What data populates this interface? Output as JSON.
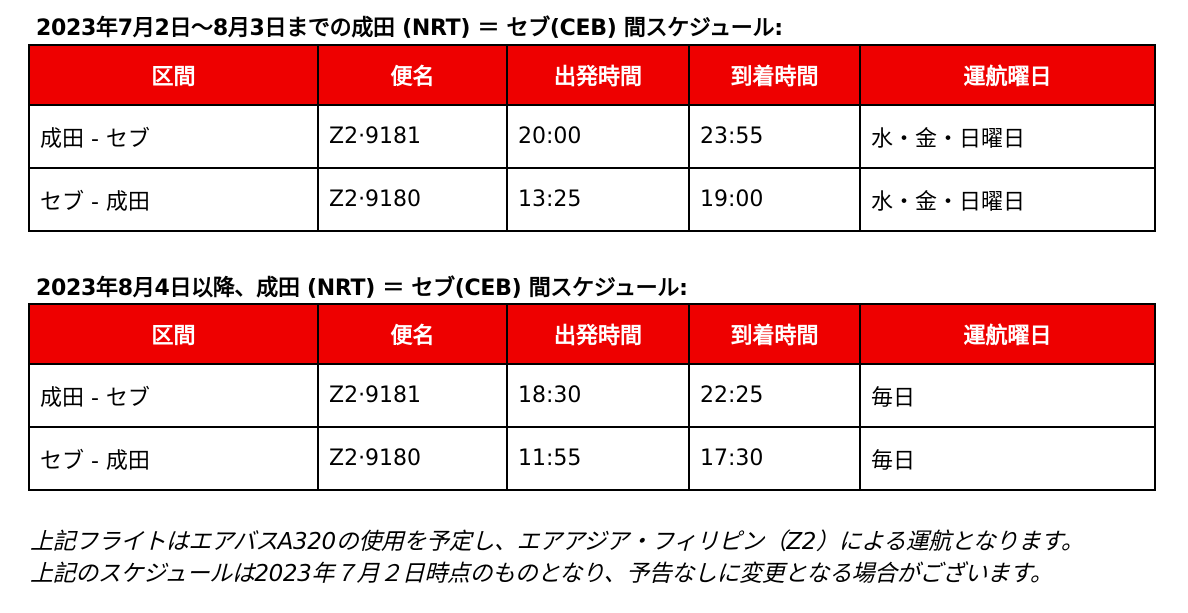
{
  "schedule1": {
    "heading": "2023年7月2日～8月3日までの成田 (NRT) ＝ セブ(CEB) 間スケジュール:",
    "columns": [
      "区間",
      "便名",
      "出発時間",
      "到着時間",
      "運航曜日"
    ],
    "rows": [
      [
        "成田 - セブ",
        "Z2·9181",
        "20:00",
        "23:55",
        "水・金・日曜日"
      ],
      [
        "セブ - 成田",
        "Z2·9180",
        "13:25",
        "19:00",
        "水・金・日曜日"
      ]
    ]
  },
  "schedule2": {
    "heading": "2023年8月4日以降、成田 (NRT) ＝ セブ(CEB) 間スケジュール:",
    "columns": [
      "区間",
      "便名",
      "出発時間",
      "到着時間",
      "運航曜日"
    ],
    "rows": [
      [
        "成田 - セブ",
        "Z2·9181",
        "18:30",
        "22:25",
        "毎日"
      ],
      [
        "セブ - 成田",
        "Z2·9180",
        "11:55",
        "17:30",
        "毎日"
      ]
    ]
  },
  "notes": [
    "上記フライトはエアバスA320の使用を予定し、エアアジア・フィリピン（Z2）による運航となります。",
    "上記のスケジュールは2023年７月２日時点のものとなり、予告なしに変更となる場合がございます。"
  ],
  "colors": {
    "header_background": "#ee0000",
    "header_text": "#ffffff"
  }
}
